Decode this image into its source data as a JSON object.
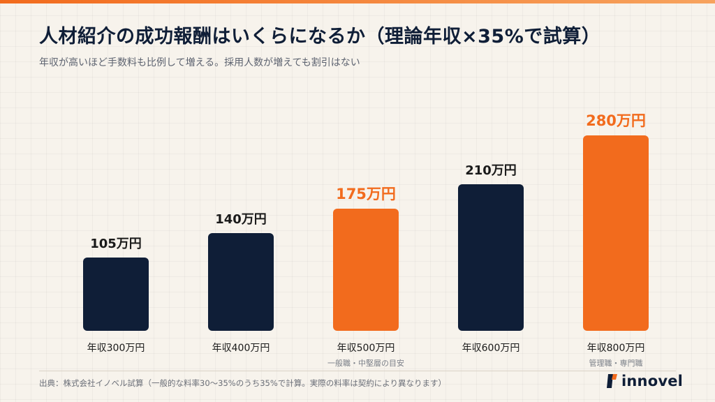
{
  "header": {
    "title": "人材紹介の成功報酬はいくらになるか（理論年収×35%で試算）",
    "subtitle": "年収が高いほど手数料も比例して増える。採用人数が増えても割引はない"
  },
  "footer": {
    "source": "出典：株式会社イノベル試算（一般的な料率30〜35%のうち35%で計算。実際の料率は契約により異なります）",
    "logo_text": "innovel",
    "logo_icon": "innovel-logo-icon"
  },
  "colors": {
    "navy": "#0f1e37",
    "orange": "#f26b1d",
    "background": "#f7f3ec"
  },
  "chart_data": {
    "type": "bar",
    "title": "人材紹介の成功報酬はいくらになるか（理論年収×35%で試算）",
    "xlabel": "",
    "ylabel": "",
    "ylim": [
      0,
      300
    ],
    "grid": true,
    "legend": "none",
    "categories": [
      "年収300万円",
      "年収400万円",
      "年収500万円",
      "年収600万円",
      "年収800万円"
    ],
    "values": [
      105,
      140,
      175,
      210,
      280
    ],
    "value_labels": [
      "105万円",
      "140万円",
      "175万円",
      "210万円",
      "280万円"
    ],
    "sublabels": [
      "",
      "",
      "一般職・中堅層の目安",
      "",
      "管理職・専門職"
    ],
    "highlighted": [
      false,
      false,
      true,
      false,
      true
    ],
    "unit": "万円"
  }
}
